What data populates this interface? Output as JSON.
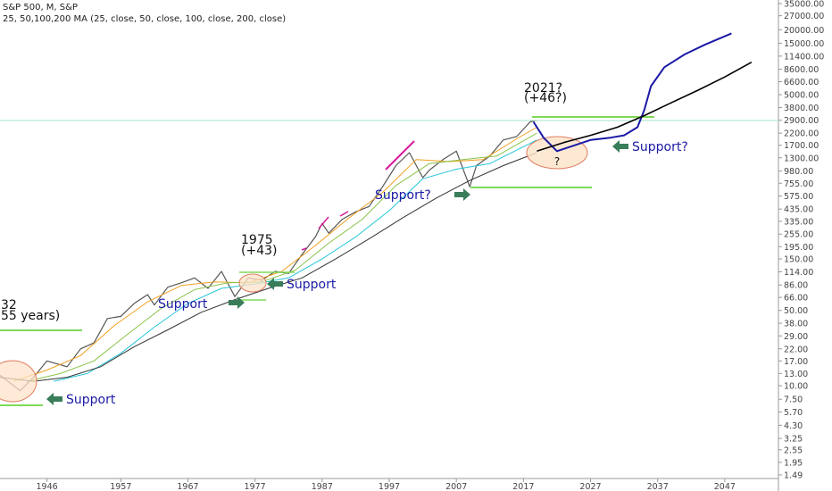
{
  "header": {
    "symbol_line": "S&P 500, M, S&P",
    "ma_line": "25, 50,100,200 MA (25, close, 50, close, 100, close, 200, close)"
  },
  "chart_data": {
    "type": "line",
    "title": "S&P 500, M, S&P",
    "scale": "log",
    "ylim": [
      1.49,
      35000
    ],
    "xlim": [
      1939,
      2055
    ],
    "grid": false,
    "price_ticks": [
      "35000.00",
      "27000.00",
      "20000.00",
      "15000.00",
      "11400.00",
      "8600.00",
      "6600.00",
      "5000.00",
      "3800.00",
      "2900.00",
      "2200.00",
      "1700.00",
      "1300.00",
      "980.00",
      "755.00",
      "575.00",
      "435.00",
      "335.00",
      "255.00",
      "195.00",
      "150.00",
      "114.00",
      "86.00",
      "66.00",
      "50.00",
      "38.00",
      "29.00",
      "22.00",
      "17.00",
      "13.00",
      "10.00",
      "7.50",
      "5.70",
      "4.30",
      "3.25",
      "2.55",
      "1.95",
      "1.49"
    ],
    "year_ticks": [
      "1946",
      "1957",
      "1967",
      "1977",
      "1987",
      "1997",
      "2007",
      "2017",
      "2027",
      "2037",
      "2047"
    ],
    "reference_price": 2750,
    "series": [
      {
        "key": "price",
        "color": "#555555",
        "x": [
          1939,
          1942,
          1944,
          1946,
          1949,
          1951,
          1953,
          1955,
          1957,
          1959,
          1961,
          1962,
          1964,
          1966,
          1968,
          1970,
          1972,
          1974,
          1976,
          1978,
          1980,
          1982,
          1984,
          1986,
          1987,
          1988,
          1990,
          1992,
          1994,
          1996,
          1998,
          2000,
          2002,
          2003,
          2005,
          2007,
          2009,
          2010,
          2012,
          2014,
          2016,
          2018,
          2019
        ],
        "values": [
          12.5,
          9,
          12,
          17,
          15,
          22,
          25,
          42,
          44,
          58,
          70,
          56,
          82,
          90,
          100,
          80,
          115,
          67,
          100,
          95,
          115,
          110,
          165,
          240,
          320,
          260,
          350,
          410,
          460,
          700,
          1100,
          1450,
          850,
          1000,
          1250,
          1500,
          700,
          1100,
          1350,
          1900,
          2050,
          2800,
          2900
        ]
      },
      {
        "key": "ma25",
        "color": "#f0a020",
        "x": [
          1941,
          1946,
          1951,
          1956,
          1961,
          1966,
          1971,
          1976,
          1981,
          1986,
          1991,
          1996,
          2001,
          2006,
          2011,
          2016,
          2019
        ],
        "values": [
          11,
          14,
          19,
          36,
          60,
          85,
          92,
          90,
          115,
          200,
          360,
          620,
          1250,
          1200,
          1250,
          1950,
          2500
        ]
      },
      {
        "key": "ma50",
        "color": "#8bc34a",
        "x": [
          1943,
          1948,
          1953,
          1958,
          1963,
          1968,
          1973,
          1978,
          1983,
          1988,
          1993,
          1998,
          2003,
          2008,
          2013,
          2019
        ],
        "values": [
          11,
          13,
          17,
          30,
          52,
          78,
          90,
          92,
          118,
          210,
          350,
          720,
          1150,
          1250,
          1350,
          2200
        ]
      },
      {
        "key": "ma100",
        "color": "#26c6da",
        "x": [
          1947,
          1952,
          1957,
          1962,
          1967,
          1972,
          1977,
          1982,
          1987,
          1992,
          1997,
          2002,
          2007,
          2012,
          2019
        ],
        "values": [
          11,
          13,
          20,
          35,
          58,
          80,
          88,
          100,
          150,
          240,
          420,
          830,
          1020,
          1150,
          1900
        ]
      },
      {
        "key": "ma200",
        "color": "#333333",
        "x": [
          1939,
          1944,
          1949,
          1954,
          1959,
          1964,
          1969,
          1974,
          1979,
          1984,
          1989,
          1994,
          1999,
          2004,
          2009,
          2014,
          2019
        ],
        "values": [
          12,
          11,
          12,
          15,
          23,
          33,
          48,
          63,
          80,
          100,
          150,
          230,
          360,
          550,
          800,
          1100,
          1450
        ]
      },
      {
        "key": "projection_blue",
        "color": "#1a1aa6",
        "x": [
          2018.5,
          2020,
          2022,
          2024,
          2027,
          2030,
          2032,
          2034,
          2035,
          2036,
          2038,
          2041,
          2044,
          2048
        ],
        "values": [
          2800,
          2000,
          1500,
          1650,
          1900,
          2000,
          2100,
          2500,
          3600,
          6000,
          9000,
          11800,
          14500,
          18500
        ]
      },
      {
        "key": "projection_black",
        "color": "#000000",
        "x": [
          2019,
          2023,
          2027,
          2031,
          2035,
          2039,
          2043,
          2047,
          2051
        ],
        "values": [
          1500,
          1800,
          2100,
          2500,
          3200,
          4200,
          5500,
          7300,
          10000
        ]
      }
    ],
    "annotations": [
      "32",
      "55 years)",
      "Support",
      "Support",
      "Support",
      "1975",
      "(+43)",
      "Support?",
      "2021?",
      "(+46?)",
      "?",
      "Support?"
    ]
  },
  "annotations": {
    "left_year": "32",
    "left_years": "55 years)",
    "support_1": "Support",
    "support_2": "Support",
    "support_3": "Support",
    "y1975": "1975",
    "plus43": "(+43)",
    "support_q1": "Support?",
    "y2021": "2021?",
    "plus46": "(+46?)",
    "question": "?",
    "support_q2": "Support?"
  },
  "colors": {
    "support_line": "#7ed957",
    "arrow": "#3a7d5a",
    "annotation_text": "#1a1aa6",
    "ellipse_fill": "#fde3c8",
    "ellipse_stroke": "#e07a5f",
    "magenta": "#d81b9c",
    "reference_line": "#a8e6c9",
    "axis_text": "#444444"
  }
}
